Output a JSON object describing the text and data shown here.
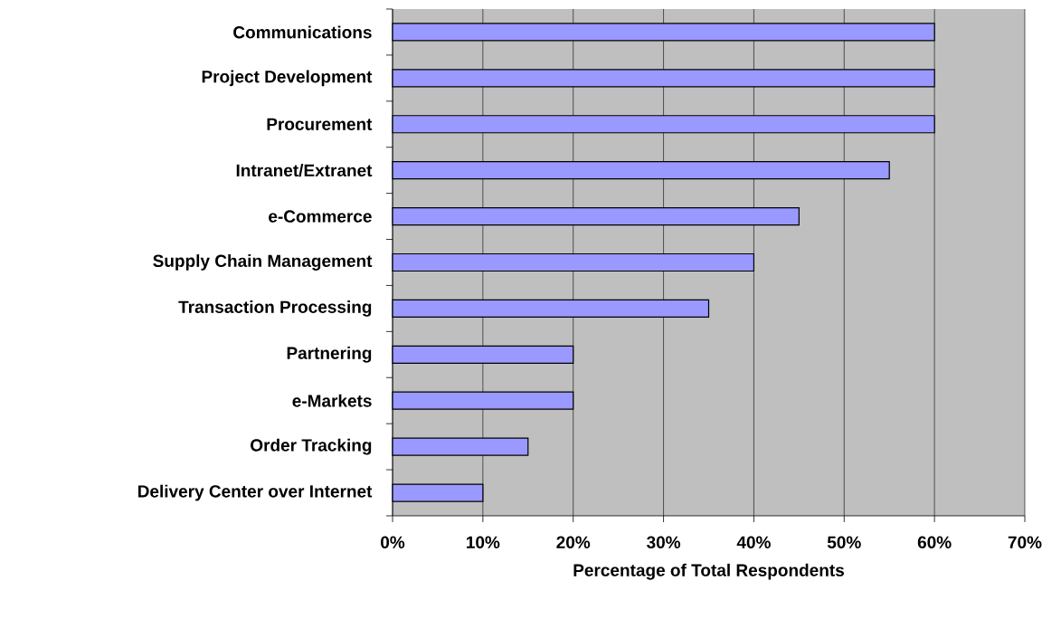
{
  "chart_data": {
    "type": "bar",
    "orientation": "horizontal",
    "categories": [
      "Communications",
      "Project Development",
      "Procurement",
      "Intranet/Extranet",
      "e-Commerce",
      "Supply Chain Management",
      "Transaction Processing",
      "Partnering",
      "e-Markets",
      "Order Tracking",
      "Delivery Center over Internet"
    ],
    "values": [
      60,
      60,
      60,
      55,
      45,
      40,
      35,
      20,
      20,
      15,
      10
    ],
    "color": "#9999ff",
    "xlabel": "Percentage of Total Respondents",
    "xlim": [
      0,
      70
    ],
    "xticks": [
      {
        "value": 0,
        "label": "0%"
      },
      {
        "value": 10,
        "label": "10%"
      },
      {
        "value": 20,
        "label": "20%"
      },
      {
        "value": 30,
        "label": "30%"
      },
      {
        "value": 40,
        "label": "40%"
      },
      {
        "value": 50,
        "label": "50%"
      },
      {
        "value": 60,
        "label": "60%"
      },
      {
        "value": 70,
        "label": "70%"
      }
    ],
    "grid": "x"
  }
}
